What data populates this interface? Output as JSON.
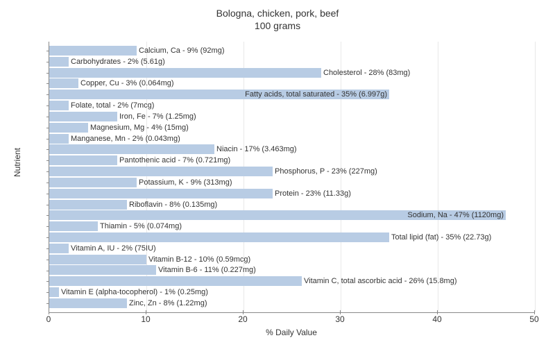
{
  "title_line1": "Bologna, chicken, pork, beef",
  "title_line2": "100 grams",
  "x_label": "% Daily Value",
  "y_label": "Nutrient",
  "chart": {
    "type": "bar-horizontal",
    "xlim": [
      0,
      50
    ],
    "xtick_step": 10,
    "xticks": [
      0,
      10,
      20,
      30,
      40,
      50
    ],
    "bar_color": "#b8cce4",
    "grid_color": "#e8e8e8",
    "axis_color": "#888888",
    "background_color": "#ffffff",
    "label_fontsize": 11,
    "axis_fontsize": 12,
    "title_fontsize": 14,
    "text_color": "#333333",
    "items": [
      {
        "label": "Calcium, Ca - 9% (92mg)",
        "value": 9
      },
      {
        "label": "Carbohydrates - 2% (5.61g)",
        "value": 2
      },
      {
        "label": "Cholesterol - 28% (83mg)",
        "value": 28
      },
      {
        "label": "Copper, Cu - 3% (0.064mg)",
        "value": 3
      },
      {
        "label": "Fatty acids, total saturated - 35% (6.997g)",
        "value": 35
      },
      {
        "label": "Folate, total - 2% (7mcg)",
        "value": 2
      },
      {
        "label": "Iron, Fe - 7% (1.25mg)",
        "value": 7
      },
      {
        "label": "Magnesium, Mg - 4% (15mg)",
        "value": 4
      },
      {
        "label": "Manganese, Mn - 2% (0.043mg)",
        "value": 2
      },
      {
        "label": "Niacin - 17% (3.463mg)",
        "value": 17
      },
      {
        "label": "Pantothenic acid - 7% (0.721mg)",
        "value": 7
      },
      {
        "label": "Phosphorus, P - 23% (227mg)",
        "value": 23
      },
      {
        "label": "Potassium, K - 9% (313mg)",
        "value": 9
      },
      {
        "label": "Protein - 23% (11.33g)",
        "value": 23
      },
      {
        "label": "Riboflavin - 8% (0.135mg)",
        "value": 8
      },
      {
        "label": "Sodium, Na - 47% (1120mg)",
        "value": 47
      },
      {
        "label": "Thiamin - 5% (0.074mg)",
        "value": 5
      },
      {
        "label": "Total lipid (fat) - 35% (22.73g)",
        "value": 35
      },
      {
        "label": "Vitamin A, IU - 2% (75IU)",
        "value": 2
      },
      {
        "label": "Vitamin B-12 - 10% (0.59mcg)",
        "value": 10
      },
      {
        "label": "Vitamin B-6 - 11% (0.227mg)",
        "value": 11
      },
      {
        "label": "Vitamin C, total ascorbic acid - 26% (15.8mg)",
        "value": 26
      },
      {
        "label": "Vitamin E (alpha-tocopherol) - 1% (0.25mg)",
        "value": 1
      },
      {
        "label": "Zinc, Zn - 8% (1.22mg)",
        "value": 8
      }
    ]
  }
}
